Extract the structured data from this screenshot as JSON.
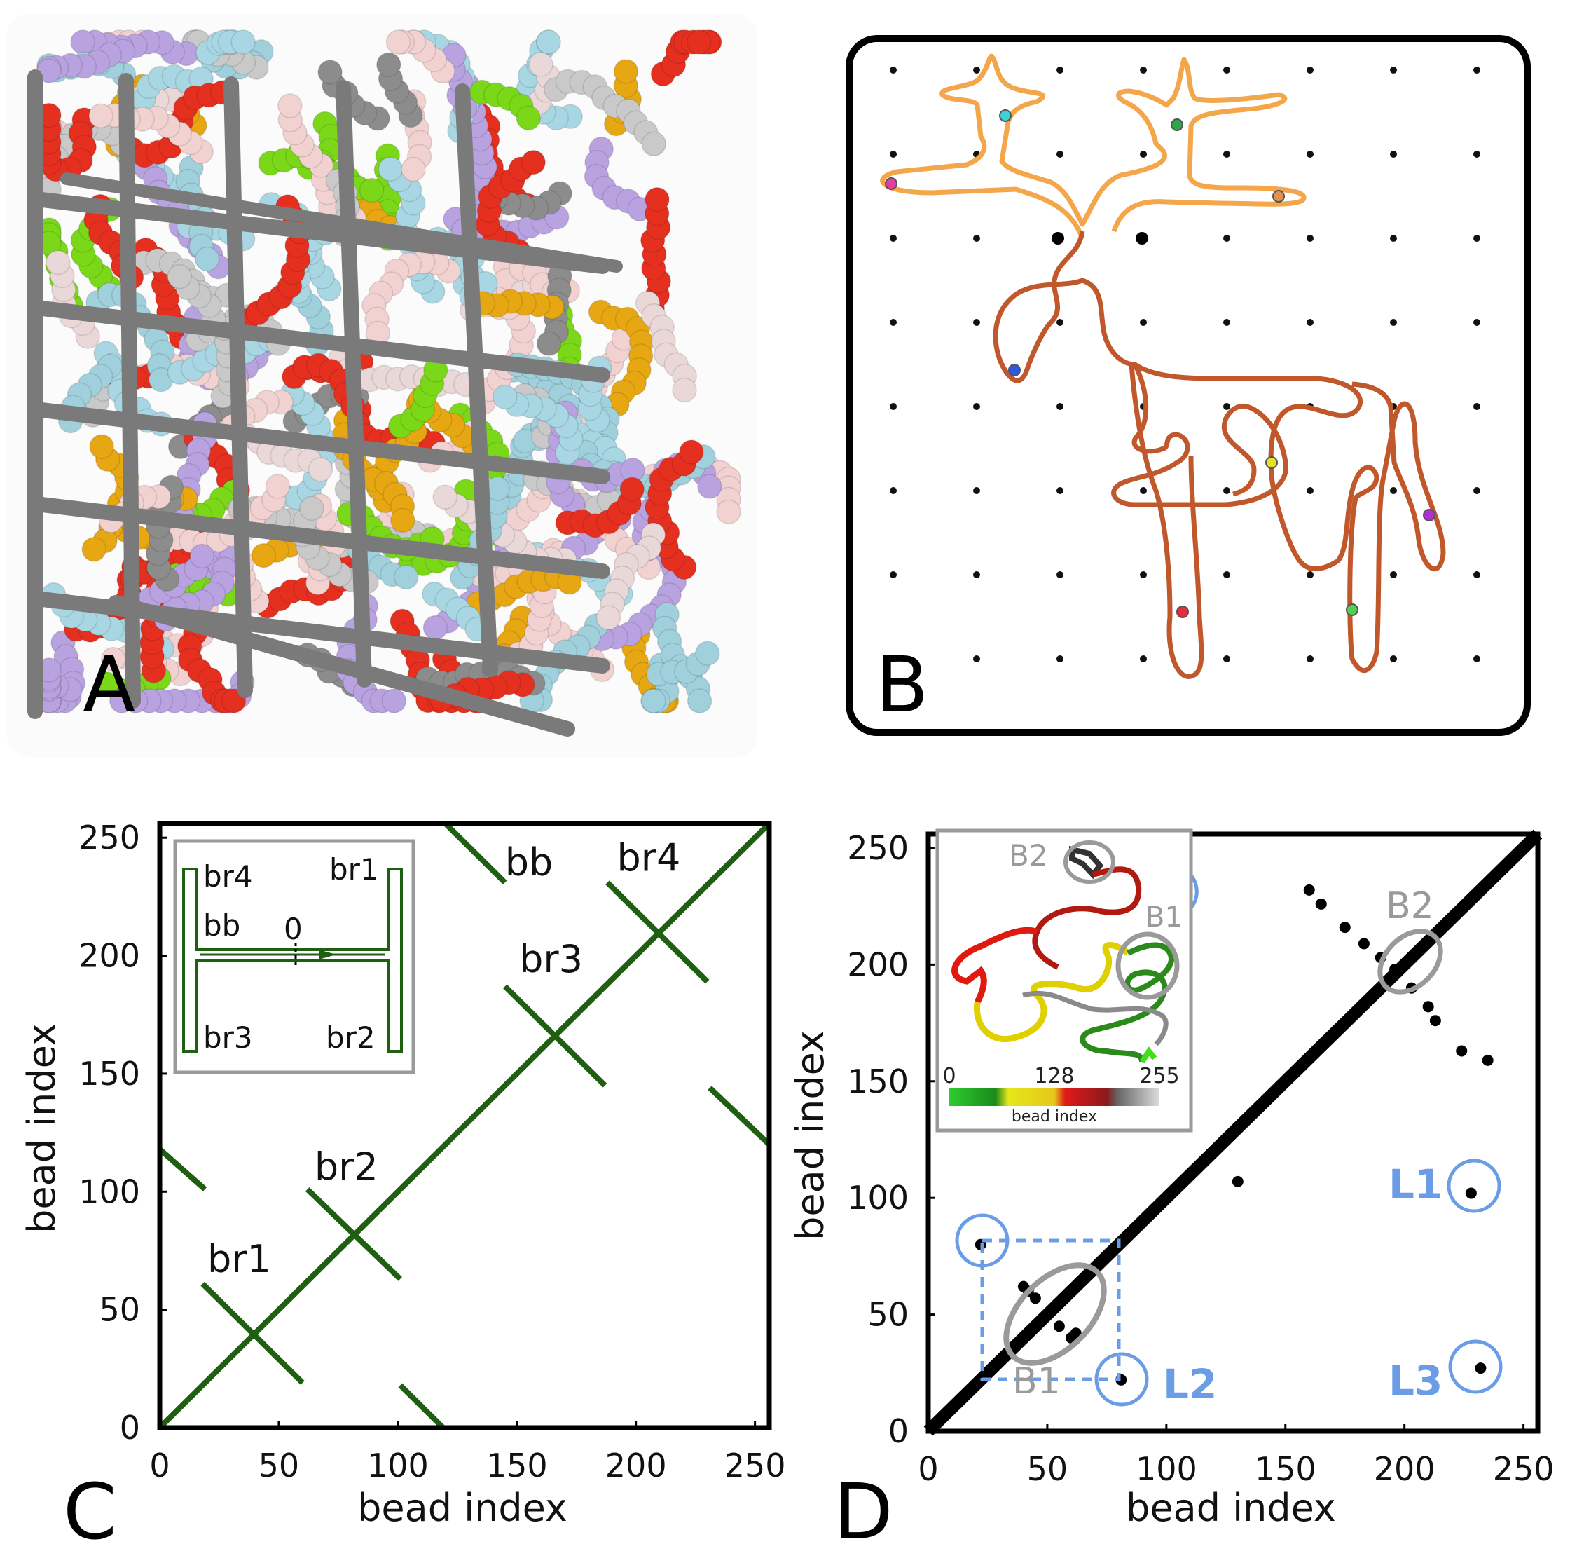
{
  "panels": {
    "A": {
      "letter": "A"
    },
    "B": {
      "letter": "B"
    },
    "C": {
      "letter": "C"
    },
    "D": {
      "letter": "D"
    }
  },
  "colors": {
    "orange_path": "#f4a64a",
    "brown_path": "#c0582c",
    "green_contact": "#1f5f12",
    "black_contact": "#000000",
    "gray_circle": "#9a9a9a",
    "blue_circle": "#6b9ce6",
    "lattice_gray": "#7a7a7a"
  },
  "chart_data": [
    {
      "panel": "C",
      "type": "scatter",
      "xlabel": "bead index",
      "ylabel": "bead index",
      "xlim": [
        0,
        256
      ],
      "ylim": [
        0,
        256
      ],
      "xticks": [
        "0",
        "50",
        "100",
        "150",
        "200",
        "250"
      ],
      "yticks": [
        "0",
        "50",
        "100",
        "150",
        "200",
        "250"
      ],
      "grid": false,
      "segments": [
        {
          "x": [
            0,
            256
          ],
          "y": [
            0,
            256
          ]
        },
        {
          "x": [
            18,
            60
          ],
          "y": [
            61,
            19
          ]
        },
        {
          "x": [
            62,
            101
          ],
          "y": [
            101,
            63
          ]
        },
        {
          "x": [
            145,
            187
          ],
          "y": [
            187,
            145
          ]
        },
        {
          "x": [
            188,
            230
          ],
          "y": [
            231,
            189
          ]
        },
        {
          "x": [
            120,
            145
          ],
          "y": [
            256,
            231
          ]
        },
        {
          "x": [
            0,
            19
          ],
          "y": [
            118,
            101
          ]
        },
        {
          "x": [
            101,
            119
          ],
          "y": [
            18,
            0
          ]
        },
        {
          "x": [
            231,
            256
          ],
          "y": [
            144,
            120
          ]
        }
      ],
      "annotations": [
        {
          "text": "br1",
          "x": 20,
          "y": 66
        },
        {
          "text": "br2",
          "x": 65,
          "y": 105
        },
        {
          "text": "br3",
          "x": 151,
          "y": 193
        },
        {
          "text": "br4",
          "x": 192,
          "y": 236
        },
        {
          "text": "bb",
          "x": 145,
          "y": 234
        }
      ],
      "inset": {
        "labels": {
          "br4": "br4",
          "br1": "br1",
          "bb": "bb",
          "origin": "0",
          "br3": "br3",
          "br2": "br2"
        }
      }
    },
    {
      "panel": "D",
      "type": "scatter",
      "xlabel": "bead index",
      "ylabel": "bead index",
      "xlim": [
        0,
        256
      ],
      "ylim": [
        0,
        256
      ],
      "xticks": [
        "0",
        "50",
        "100",
        "150",
        "200",
        "250"
      ],
      "yticks": [
        "0",
        "50",
        "100",
        "150",
        "200",
        "250"
      ],
      "grid": false,
      "diagonal": {
        "x": [
          0,
          256
        ],
        "y": [
          0,
          256
        ]
      },
      "points": [
        {
          "x": 22,
          "y": 80
        },
        {
          "x": 81,
          "y": 22
        },
        {
          "x": 228,
          "y": 102
        },
        {
          "x": 232,
          "y": 27
        },
        {
          "x": 130,
          "y": 107
        },
        {
          "x": 40,
          "y": 62
        },
        {
          "x": 45,
          "y": 57
        },
        {
          "x": 50,
          "y": 50
        },
        {
          "x": 55,
          "y": 45
        },
        {
          "x": 60,
          "y": 40
        },
        {
          "x": 62,
          "y": 42
        },
        {
          "x": 42,
          "y": 60
        },
        {
          "x": 160,
          "y": 232
        },
        {
          "x": 165,
          "y": 226
        },
        {
          "x": 175,
          "y": 216
        },
        {
          "x": 183,
          "y": 209
        },
        {
          "x": 190,
          "y": 203
        },
        {
          "x": 196,
          "y": 198
        },
        {
          "x": 203,
          "y": 190
        },
        {
          "x": 210,
          "y": 182
        },
        {
          "x": 213,
          "y": 176
        },
        {
          "x": 224,
          "y": 163
        },
        {
          "x": 235,
          "y": 159
        }
      ],
      "labels": {
        "B1": "B1",
        "B2": "B2",
        "L1": "L1",
        "L2": "L2",
        "L3": "L3"
      },
      "inset": {
        "labels": {
          "B2": "B2",
          "B1": "B1"
        },
        "colorbar": {
          "ticks": [
            "0",
            "128",
            "255"
          ],
          "title": "bead index"
        }
      }
    }
  ]
}
